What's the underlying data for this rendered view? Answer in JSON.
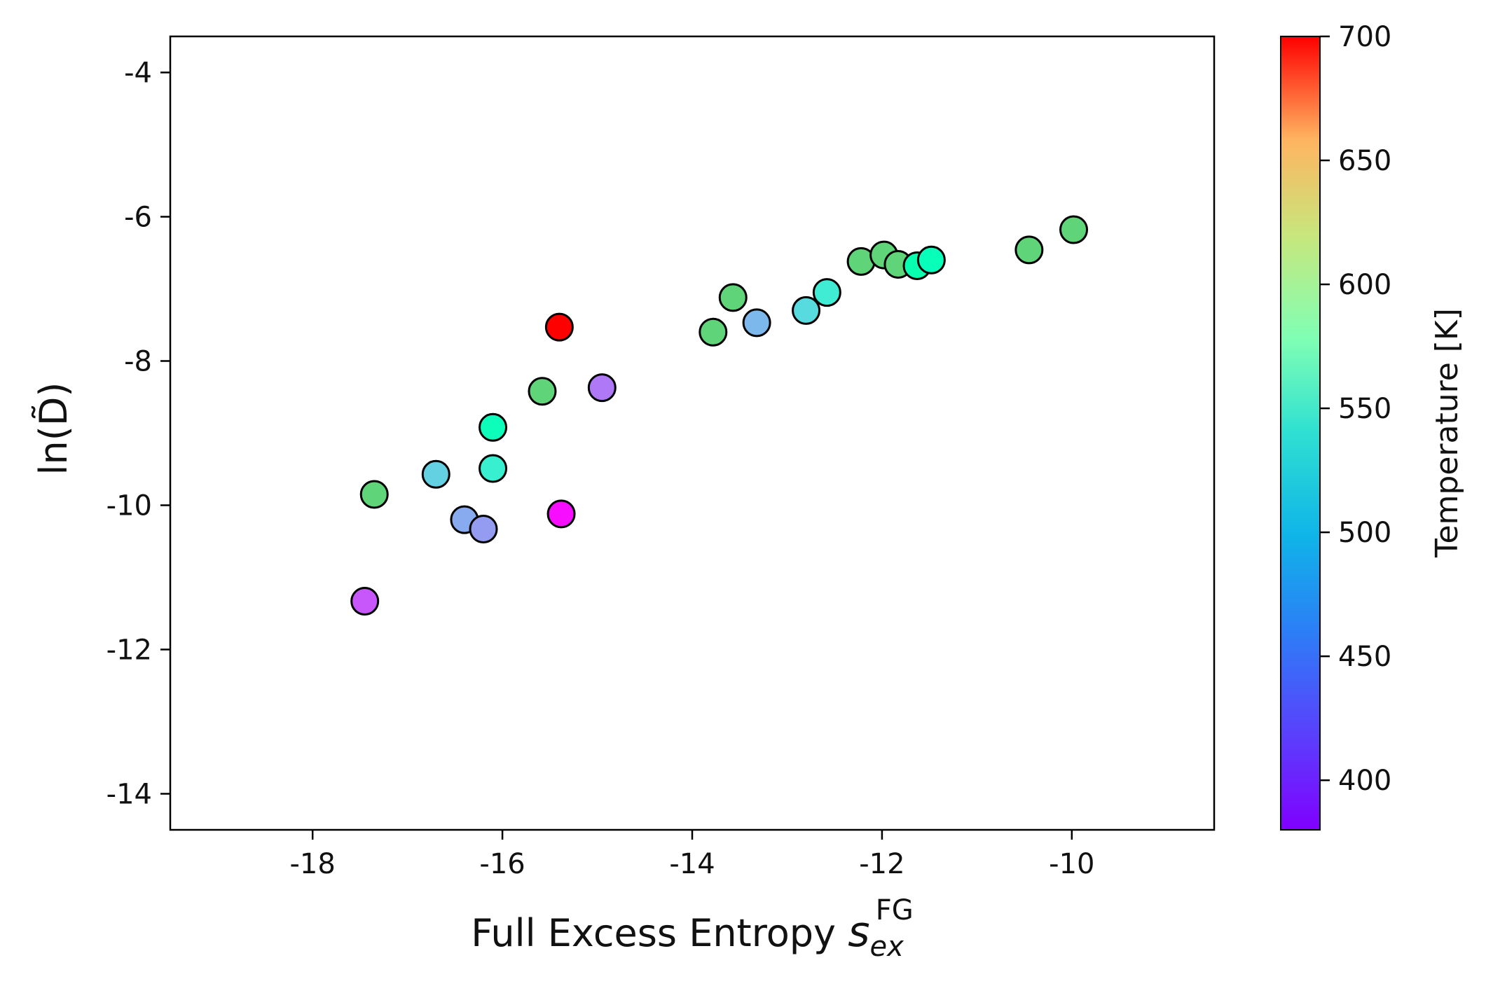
{
  "chart_data": {
    "type": "scatter",
    "title": "",
    "xlabel": {
      "main": "Full Excess Entropy ",
      "symbol": "s",
      "sub": "ex",
      "sup": "FG"
    },
    "ylabel": "ln(D̃)",
    "xlim": [
      -19.5,
      -8.5
    ],
    "ylim": [
      -14.5,
      -3.5
    ],
    "xticks": [
      -18,
      -16,
      -14,
      -12,
      -10
    ],
    "yticks": [
      -4,
      -6,
      -8,
      -10,
      -12,
      -14
    ],
    "grid": false,
    "marker_edge_color": "#000000",
    "colorbar": {
      "label": "Temperature [K]",
      "range": [
        380,
        700
      ],
      "ticks": [
        400,
        450,
        500,
        550,
        600,
        650,
        700
      ],
      "colormap": "rainbow"
    },
    "points": [
      {
        "x": -17.35,
        "y": -9.85,
        "t": 600
      },
      {
        "x": -17.45,
        "y": -11.33,
        "t": 415
      },
      {
        "x": -16.7,
        "y": -9.57,
        "t": 478
      },
      {
        "x": -16.4,
        "y": -10.2,
        "t": 455
      },
      {
        "x": -16.2,
        "y": -10.33,
        "t": 447
      },
      {
        "x": -16.1,
        "y": -8.92,
        "t": 532
      },
      {
        "x": -16.1,
        "y": -9.49,
        "t": 505
      },
      {
        "x": -15.58,
        "y": -8.42,
        "t": 600
      },
      {
        "x": -15.4,
        "y": -7.53,
        "t": 700
      },
      {
        "x": -15.38,
        "y": -10.12,
        "t": 385
      },
      {
        "x": -14.95,
        "y": -8.37,
        "t": 430
      },
      {
        "x": -13.78,
        "y": -7.6,
        "t": 600
      },
      {
        "x": -13.57,
        "y": -7.12,
        "t": 600
      },
      {
        "x": -13.32,
        "y": -7.47,
        "t": 462
      },
      {
        "x": -12.8,
        "y": -7.3,
        "t": 485
      },
      {
        "x": -12.58,
        "y": -7.05,
        "t": 500
      },
      {
        "x": -12.22,
        "y": -6.62,
        "t": 600
      },
      {
        "x": -11.98,
        "y": -6.53,
        "t": 600
      },
      {
        "x": -11.83,
        "y": -6.66,
        "t": 600
      },
      {
        "x": -11.63,
        "y": -6.68,
        "t": 545
      },
      {
        "x": -11.48,
        "y": -6.6,
        "t": 535
      },
      {
        "x": -10.45,
        "y": -6.46,
        "t": 600
      },
      {
        "x": -9.98,
        "y": -6.18,
        "t": 600
      }
    ]
  }
}
